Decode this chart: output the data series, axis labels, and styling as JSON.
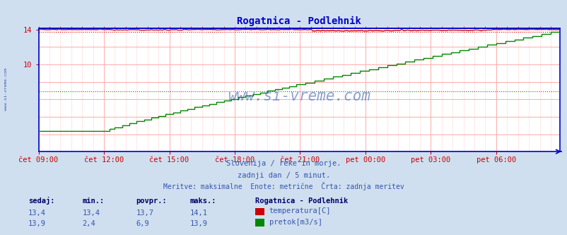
{
  "title": "Rogatnica - Podlehnik",
  "title_color": "#0000cc",
  "bg_color": "#d0dff0",
  "plot_bg_color": "#ffffff",
  "grid_color_major": "#ffaaaa",
  "grid_color_minor": "#ffdddd",
  "x_labels": [
    "čet 09:00",
    "čet 12:00",
    "čet 15:00",
    "čet 18:00",
    "čet 21:00",
    "pet 00:00",
    "pet 03:00",
    "pet 06:00"
  ],
  "x_ticks_idx": [
    0,
    36,
    72,
    108,
    144,
    180,
    216,
    252
  ],
  "total_points": 288,
  "y_min": 0,
  "y_max": 14,
  "temp_color": "#cc0000",
  "flow_color": "#008800",
  "watermark": "www.si-vreme.com",
  "watermark_color": "#3355aa",
  "footer_line1": "Slovenija / reke in morje.",
  "footer_line2": "zadnji dan / 5 minut.",
  "footer_line3": "Meritve: maksimalne  Enote: metrične  Črta: zadnja meritev",
  "footer_color": "#3355aa",
  "stats_header": "Rogatnica - Podlehnik",
  "stats_color": "#3355aa",
  "stats_bold_color": "#000066",
  "sedaj_label": "sedaj:",
  "min_label": "min.:",
  "povpr_label": "povpr.:",
  "maks_label": "maks.:",
  "temp_sedaj": "13,4",
  "temp_min": "13,4",
  "temp_povpr": "13,7",
  "temp_maks": "14,1",
  "flow_sedaj": "13,9",
  "flow_min": "2,4",
  "flow_povpr": "6,9",
  "flow_maks": "13,9",
  "temp_label": "temperatura[C]",
  "flow_label": "pretok[m3/s]",
  "axis_color": "#0000cc",
  "tick_color": "#cc0000",
  "avg_temp": 13.7,
  "avg_flow": 6.9,
  "left_label": "www.si-vreme.com"
}
